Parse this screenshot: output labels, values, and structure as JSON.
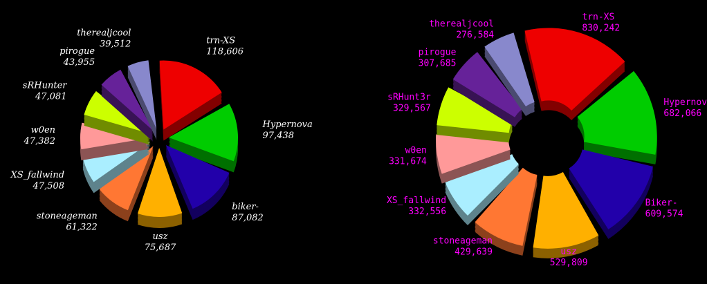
{
  "chart_data": [
    {
      "type": "pie",
      "categories": [
        "trn-XS",
        "Hypernova",
        "biker-",
        "usz",
        "stoneageman",
        "XS_fallwind",
        "w0en",
        "sRHunter",
        "pirogue",
        "therealjcool"
      ],
      "values": [
        118606,
        97438,
        87082,
        75687,
        61322,
        47508,
        47382,
        47081,
        43955,
        39512
      ],
      "value_labels": [
        "118,606",
        "97,438",
        "87,082",
        "75,687",
        "61,322",
        "47,508",
        "47,382",
        "47,081",
        "43,955",
        "39,512"
      ],
      "colors": [
        "#ee0000",
        "#00cc00",
        "#2200aa",
        "#ffb000",
        "#ff7733",
        "#aaeeff",
        "#ff9999",
        "#ccff00",
        "#662299",
        "#8888cc"
      ],
      "label_color": "#ffffff"
    },
    {
      "type": "pie",
      "categories": [
        "trn-XS",
        "Hypernova",
        "Biker-",
        "usz",
        "stoneageman",
        "XS_fallwind",
        "w0en",
        "sRHunt3r",
        "pirogue",
        "therealjcool"
      ],
      "values": [
        830242,
        682066,
        609574,
        529809,
        429639,
        332556,
        331674,
        329567,
        307685,
        276584
      ],
      "value_labels": [
        "830,242",
        "682,066",
        "609,574",
        "529,809",
        "429,639",
        "332,556",
        "331,674",
        "329,567",
        "307,685",
        "276,584"
      ],
      "colors": [
        "#ee0000",
        "#00cc00",
        "#2200aa",
        "#ffb000",
        "#ff7733",
        "#aaeeff",
        "#ff9999",
        "#ccff00",
        "#662299",
        "#8888cc"
      ],
      "label_color": "#ff00ff"
    }
  ]
}
